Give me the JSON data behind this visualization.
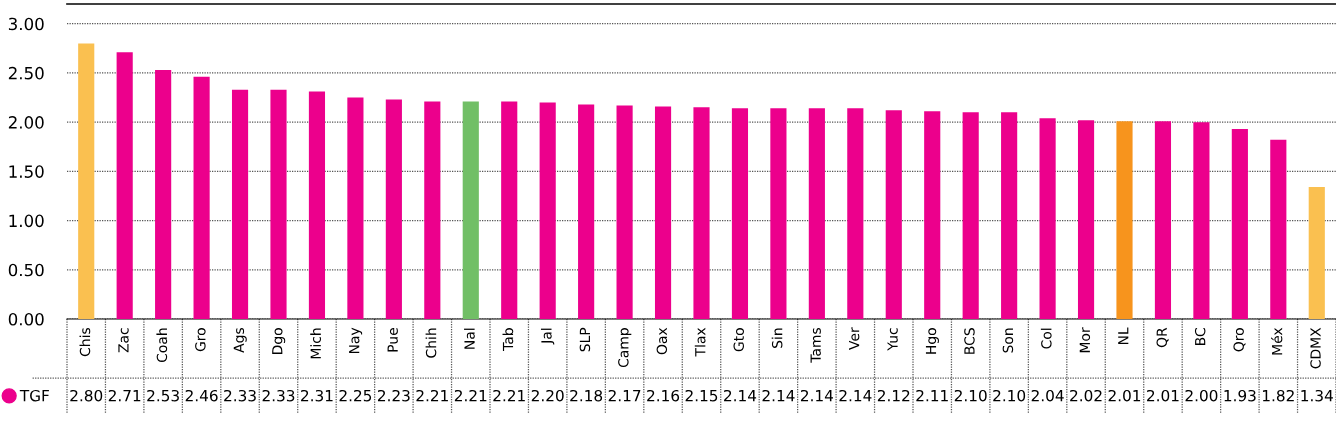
{
  "chart_data": {
    "type": "bar",
    "categories": [
      "Chis",
      "Zac",
      "Coah",
      "Gro",
      "Ags",
      "Dgo",
      "Mich",
      "Nay",
      "Pue",
      "Chih",
      "Nal",
      "Tab",
      "Jal",
      "SLP",
      "Camp",
      "Oax",
      "Tlax",
      "Gto",
      "Sin",
      "Tams",
      "Ver",
      "Yuc",
      "Hgo",
      "BCS",
      "Son",
      "Col",
      "Mor",
      "NL",
      "QR",
      "BC",
      "Qro",
      "Méx",
      "CDMX"
    ],
    "series": [
      {
        "name": "TGF",
        "color": "#ec008c",
        "values": [
          2.8,
          2.71,
          2.53,
          2.46,
          2.33,
          2.33,
          2.31,
          2.25,
          2.23,
          2.21,
          2.21,
          2.21,
          2.2,
          2.18,
          2.17,
          2.16,
          2.15,
          2.14,
          2.14,
          2.14,
          2.14,
          2.12,
          2.11,
          2.1,
          2.1,
          2.04,
          2.02,
          2.01,
          2.01,
          2.0,
          1.93,
          1.82,
          1.34
        ],
        "colors": [
          "#fac050",
          "#ec008c",
          "#ec008c",
          "#ec008c",
          "#ec008c",
          "#ec008c",
          "#ec008c",
          "#ec008c",
          "#ec008c",
          "#ec008c",
          "#71bf66",
          "#ec008c",
          "#ec008c",
          "#ec008c",
          "#ec008c",
          "#ec008c",
          "#ec008c",
          "#ec008c",
          "#ec008c",
          "#ec008c",
          "#ec008c",
          "#ec008c",
          "#ec008c",
          "#ec008c",
          "#ec008c",
          "#ec008c",
          "#ec008c",
          "#f7941d",
          "#ec008c",
          "#ec008c",
          "#ec008c",
          "#ec008c",
          "#fac050"
        ],
        "value_labels": [
          "2.80",
          "2.71",
          "2.53",
          "2.46",
          "2.33",
          "2.33",
          "2.31",
          "2.25",
          "2.23",
          "2.21",
          "2.21",
          "2.21",
          "2.20",
          "2.18",
          "2.17",
          "2.16",
          "2.15",
          "2.14",
          "2.14",
          "2.14",
          "2.14",
          "2.12",
          "2.11",
          "2.10",
          "2.10",
          "2.04",
          "2.02",
          "2.01",
          "2.01",
          "2.00",
          "1.93",
          "1.82",
          "1.34"
        ]
      }
    ],
    "ylim": [
      0,
      3.2
    ],
    "yticks": [
      {
        "value": 0,
        "label": "0.00"
      },
      {
        "value": 0.5,
        "label": "0.50"
      },
      {
        "value": 1,
        "label": "1.00"
      },
      {
        "value": 1.5,
        "label": "1.50"
      },
      {
        "value": 2,
        "label": "2.00"
      },
      {
        "value": 2.5,
        "label": "2.50"
      },
      {
        "value": 3,
        "label": "3.00"
      }
    ],
    "grid": "y",
    "legend": "bottom left"
  }
}
